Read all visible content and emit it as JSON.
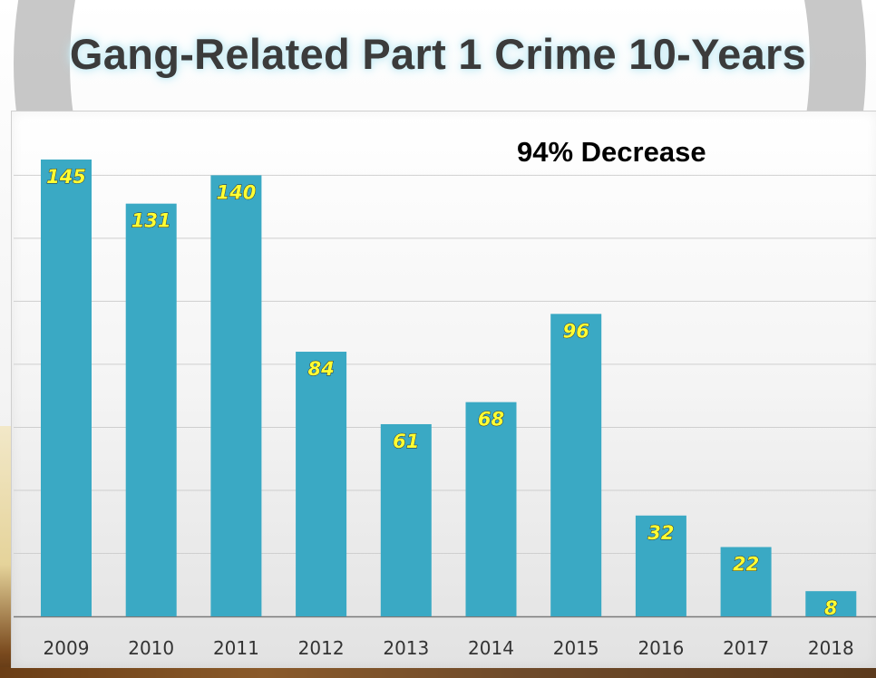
{
  "title": "Gang-Related Part 1 Crime 10-Years",
  "chart_data": {
    "type": "bar",
    "title": "Gang-Related Part 1 Crime 10-Years",
    "annotation": "94% Decrease",
    "categories": [
      "2009",
      "2010",
      "2011",
      "2012",
      "2013",
      "2014",
      "2015",
      "2016",
      "2017",
      "2018"
    ],
    "values": [
      145,
      131,
      140,
      84,
      61,
      68,
      96,
      32,
      22,
      8
    ],
    "data_labels": [
      "145",
      "131",
      "140",
      "84",
      "61",
      "68",
      "96",
      "32",
      "22",
      "8"
    ],
    "xlabel": "",
    "ylabel": "",
    "ylim": [
      0,
      160
    ],
    "grid": true,
    "bar_color": "#3aa9c4",
    "label_color": "#ffff33"
  }
}
